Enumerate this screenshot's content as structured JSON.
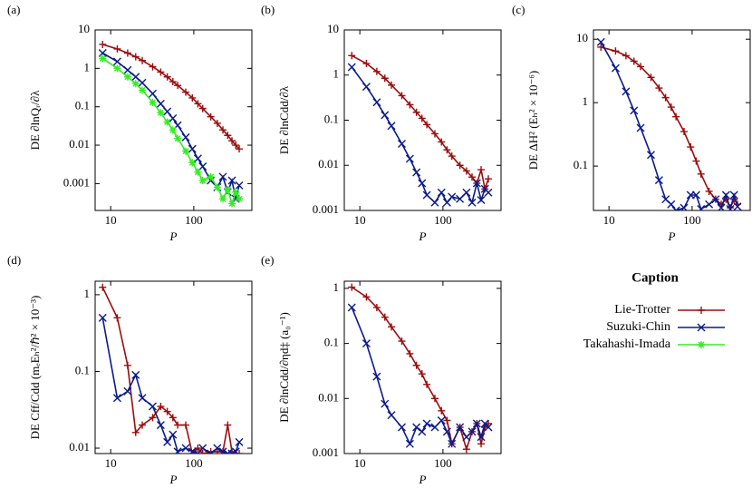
{
  "chart_data": [
    {
      "type": "line",
      "label": "(a)",
      "xlabel": "P",
      "ylabel": "DE ∂lnQᵣ/∂λ",
      "log_x": true,
      "log_y": true,
      "xlim": [
        6.5,
        500
      ],
      "ylim": [
        0.0002,
        10
      ],
      "xticks": [
        10,
        100
      ],
      "yticks": [
        0.001,
        0.01,
        0.1,
        1,
        10
      ],
      "x": [
        8,
        12,
        16,
        20,
        24,
        32,
        40,
        48,
        56,
        64,
        80,
        96,
        112,
        128,
        160,
        192,
        224,
        256,
        288,
        320,
        352
      ],
      "series": [
        {
          "name": "Lie-Trotter",
          "color": "#9b0d0d",
          "marker": "plus",
          "values": [
            4.2,
            3.2,
            2.5,
            2,
            1.6,
            1.1,
            0.8,
            0.6,
            0.45,
            0.36,
            0.24,
            0.17,
            0.12,
            0.09,
            0.055,
            0.037,
            0.025,
            0.018,
            0.013,
            0.01,
            0.008
          ]
        },
        {
          "name": "Suzuki-Chin",
          "color": "#0a1a8c",
          "marker": "cross",
          "values": [
            2.5,
            1.5,
            0.9,
            0.6,
            0.42,
            0.22,
            0.12,
            0.075,
            0.05,
            0.033,
            0.016,
            0.008,
            0.0045,
            0.0028,
            0.0012,
            0.0008,
            0.0015,
            0.0006,
            0.0012,
            0.0004,
            0.0009
          ]
        },
        {
          "name": "Takahashi-Imada",
          "color": "#33ee22",
          "marker": "star",
          "values": [
            1.8,
            1.0,
            0.6,
            0.4,
            0.27,
            0.13,
            0.07,
            0.04,
            0.025,
            0.015,
            0.007,
            0.0035,
            0.002,
            0.0012,
            0.0015,
            0.0008,
            0.0004,
            0.0007,
            0.0003,
            0.0006,
            0.0004
          ]
        }
      ]
    },
    {
      "type": "line",
      "label": "(b)",
      "xlabel": "P",
      "ylabel": "DE ∂lnCdd/∂λ",
      "log_x": true,
      "log_y": true,
      "xlim": [
        6.5,
        500
      ],
      "ylim": [
        0.001,
        10
      ],
      "xticks": [
        10,
        100
      ],
      "yticks": [
        0.001,
        0.01,
        0.1,
        1,
        10
      ],
      "x": [
        8,
        12,
        16,
        20,
        24,
        32,
        40,
        48,
        56,
        64,
        80,
        96,
        112,
        128,
        160,
        192,
        224,
        256,
        288,
        320,
        352
      ],
      "series": [
        {
          "name": "Lie-Trotter",
          "color": "#9b0d0d",
          "marker": "plus",
          "values": [
            2.7,
            1.8,
            1.2,
            0.85,
            0.6,
            0.35,
            0.22,
            0.15,
            0.11,
            0.08,
            0.05,
            0.033,
            0.022,
            0.016,
            0.01,
            0.0075,
            0.0055,
            0.004,
            0.008,
            0.003,
            0.005
          ]
        },
        {
          "name": "Suzuki-Chin",
          "color": "#0a1a8c",
          "marker": "cross",
          "values": [
            1.5,
            0.55,
            0.25,
            0.13,
            0.075,
            0.03,
            0.014,
            0.007,
            0.004,
            0.0022,
            0.0015,
            0.0025,
            0.0015,
            0.002,
            0.0018,
            0.0025,
            0.0015,
            0.004,
            0.0017,
            0.003,
            0.0025
          ]
        }
      ]
    },
    {
      "type": "line",
      "label": "(c)",
      "xlabel": "P",
      "ylabel": "DE ΔH² (Eₕ² × 10⁻⁶)",
      "log_x": true,
      "log_y": true,
      "xlim": [
        6.5,
        500
      ],
      "ylim": [
        0.02,
        14
      ],
      "xticks": [
        10,
        100
      ],
      "yticks": [
        0.1,
        1,
        10
      ],
      "x": [
        8,
        12,
        16,
        20,
        24,
        32,
        40,
        48,
        56,
        64,
        80,
        96,
        112,
        128,
        160,
        192,
        224,
        256,
        288,
        320,
        352
      ],
      "series": [
        {
          "name": "Lie-Trotter",
          "color": "#9b0d0d",
          "marker": "plus",
          "values": [
            7.5,
            6.5,
            5.5,
            4.5,
            3.7,
            2.5,
            1.7,
            1.2,
            0.85,
            0.6,
            0.35,
            0.2,
            0.12,
            0.075,
            0.04,
            0.03,
            0.025,
            0.03,
            0.022,
            0.03,
            0.025
          ]
        },
        {
          "name": "Suzuki-Chin",
          "color": "#0a1a8c",
          "marker": "cross",
          "values": [
            9,
            3.5,
            1.5,
            0.75,
            0.4,
            0.15,
            0.06,
            0.03,
            0.025,
            0.02,
            0.022,
            0.035,
            0.035,
            0.021,
            0.025,
            0.03,
            0.022,
            0.035,
            0.021,
            0.035,
            0.023
          ]
        }
      ]
    },
    {
      "type": "line",
      "label": "(d)",
      "xlabel": "P",
      "ylabel": "DE Cff/Cdd (mₑEₕ²/ℏ² × 10⁻³)",
      "log_x": true,
      "log_y": true,
      "xlim": [
        6.5,
        500
      ],
      "ylim": [
        0.0085,
        1.5
      ],
      "xticks": [
        10,
        100
      ],
      "yticks": [
        0.01,
        0.1,
        1
      ],
      "x": [
        8,
        12,
        16,
        20,
        24,
        32,
        40,
        48,
        56,
        64,
        80,
        96,
        112,
        128,
        160,
        192,
        224,
        256,
        288,
        320,
        352
      ],
      "series": [
        {
          "name": "Lie-Trotter",
          "color": "#9b0d0d",
          "marker": "plus",
          "values": [
            1.25,
            0.5,
            0.12,
            0.016,
            0.02,
            0.025,
            0.035,
            0.03,
            0.025,
            0.02,
            0.02,
            0.0085,
            0.01,
            0.0085,
            0.009,
            0.009,
            0.009,
            0.02,
            0.009,
            0.0085,
            0.0085
          ]
        },
        {
          "name": "Suzuki-Chin",
          "color": "#0a1a8c",
          "marker": "cross",
          "values": [
            0.5,
            0.045,
            0.055,
            0.09,
            0.045,
            0.035,
            0.02,
            0.012,
            0.015,
            0.009,
            0.01,
            0.009,
            0.0085,
            0.01,
            0.0085,
            0.01,
            0.009,
            0.0085,
            0.0085,
            0.009,
            0.012
          ]
        }
      ]
    },
    {
      "type": "line",
      "label": "(e)",
      "xlabel": "P",
      "ylabel": "DE ∂lnCdd/∂ηd‡ (a₀⁻¹)",
      "log_x": true,
      "log_y": true,
      "xlim": [
        6.5,
        500
      ],
      "ylim": [
        0.001,
        1.35
      ],
      "xticks": [
        10,
        100
      ],
      "yticks": [
        0.001,
        0.01,
        0.1,
        1
      ],
      "x": [
        8,
        12,
        16,
        20,
        24,
        32,
        40,
        48,
        56,
        64,
        80,
        96,
        112,
        128,
        160,
        192,
        224,
        256,
        288,
        320,
        352
      ],
      "series": [
        {
          "name": "Lie-Trotter",
          "color": "#9b0d0d",
          "marker": "plus",
          "values": [
            1.05,
            0.7,
            0.45,
            0.3,
            0.2,
            0.11,
            0.065,
            0.04,
            0.028,
            0.018,
            0.01,
            0.006,
            0.004,
            0.0015,
            0.003,
            0.0012,
            0.0025,
            0.0035,
            0.0015,
            0.003,
            0.0035
          ]
        },
        {
          "name": "Suzuki-Chin",
          "color": "#0a1a8c",
          "marker": "cross",
          "values": [
            0.45,
            0.1,
            0.025,
            0.008,
            0.005,
            0.003,
            0.0015,
            0.003,
            0.0025,
            0.0035,
            0.003,
            0.004,
            0.0025,
            0.0015,
            0.003,
            0.002,
            0.0025,
            0.0035,
            0.002,
            0.0035,
            0.003
          ]
        }
      ]
    }
  ],
  "legend": {
    "title": "Caption"
  }
}
